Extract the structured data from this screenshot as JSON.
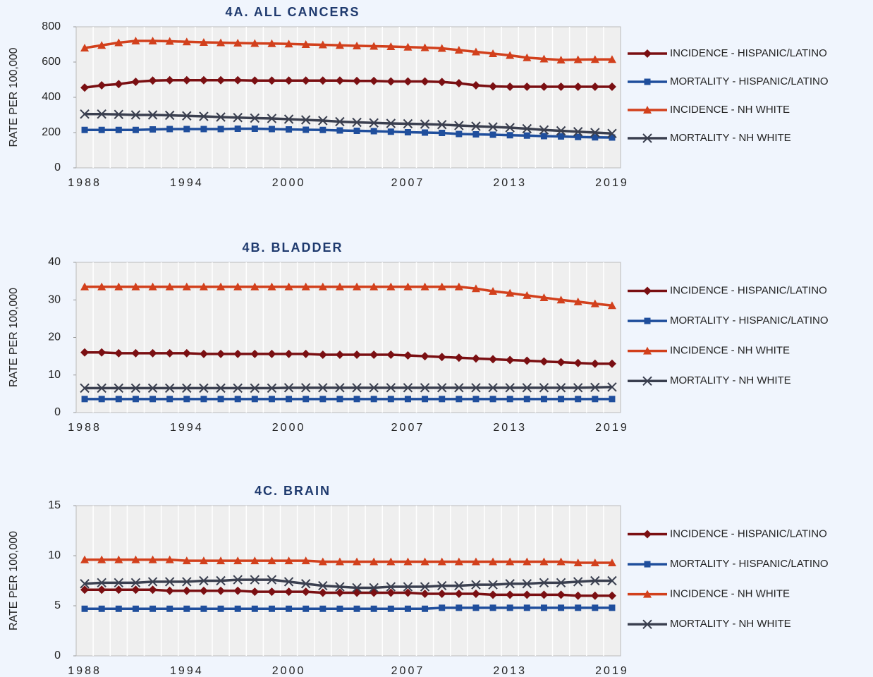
{
  "chart_data": [
    {
      "type": "line",
      "title": "4A. ALL CANCERS",
      "ylabel": "RATE PER 100,000",
      "categories": [
        "1988",
        null,
        null,
        null,
        null,
        null,
        "1994",
        null,
        null,
        null,
        null,
        null,
        "2000",
        null,
        null,
        null,
        null,
        null,
        null,
        "2007",
        null,
        null,
        null,
        null,
        null,
        "2013",
        null,
        null,
        null,
        null,
        null,
        "2019"
      ],
      "ylim": [
        0,
        800
      ],
      "yticks": [
        0,
        200,
        400,
        600,
        800
      ],
      "xgrid": true,
      "legend": "right",
      "series": [
        {
          "name": "INCIDENCE - HISPANIC/LATINO",
          "color": "#7a0f12",
          "marker": "diamond",
          "values": [
            455,
            468,
            475,
            488,
            495,
            497,
            497,
            497,
            497,
            497,
            495,
            495,
            495,
            495,
            495,
            495,
            493,
            493,
            490,
            490,
            490,
            487,
            480,
            468,
            462,
            460,
            460,
            460,
            460,
            460,
            460,
            460
          ]
        },
        {
          "name": "MORTALITY - HISPANIC/LATINO",
          "color": "#1f4e9c",
          "marker": "square",
          "values": [
            215,
            215,
            215,
            215,
            218,
            220,
            220,
            220,
            220,
            222,
            222,
            220,
            218,
            216,
            215,
            212,
            210,
            208,
            205,
            202,
            200,
            198,
            192,
            190,
            188,
            185,
            183,
            180,
            178,
            175,
            173,
            172
          ]
        },
        {
          "name": "INCIDENCE - NH WHITE",
          "color": "#d2401c",
          "marker": "triangle",
          "values": [
            680,
            695,
            710,
            720,
            720,
            718,
            715,
            712,
            710,
            708,
            706,
            705,
            703,
            700,
            698,
            695,
            692,
            690,
            688,
            685,
            682,
            678,
            668,
            658,
            648,
            638,
            625,
            618,
            612,
            614,
            615,
            615
          ]
        },
        {
          "name": "MORTALITY - NH WHITE",
          "color": "#3a3f4f",
          "marker": "x",
          "values": [
            305,
            305,
            303,
            300,
            300,
            298,
            295,
            292,
            288,
            285,
            282,
            280,
            276,
            272,
            268,
            262,
            258,
            255,
            252,
            250,
            248,
            245,
            240,
            236,
            232,
            228,
            222,
            215,
            210,
            205,
            200,
            195
          ]
        }
      ]
    },
    {
      "type": "line",
      "title": "4B. BLADDER",
      "ylabel": "RATE PER 100,000",
      "categories": [
        "1988",
        null,
        null,
        null,
        null,
        null,
        "1994",
        null,
        null,
        null,
        null,
        null,
        "2000",
        null,
        null,
        null,
        null,
        null,
        null,
        "2007",
        null,
        null,
        null,
        null,
        null,
        "2013",
        null,
        null,
        null,
        null,
        null,
        "2019"
      ],
      "ylim": [
        0,
        40
      ],
      "yticks": [
        0,
        10,
        20,
        30,
        40
      ],
      "xgrid": true,
      "legend": "right",
      "series": [
        {
          "name": "INCIDENCE - HISPANIC/LATINO",
          "color": "#7a0f12",
          "marker": "diamond",
          "values": [
            16,
            16,
            15.8,
            15.8,
            15.8,
            15.8,
            15.8,
            15.6,
            15.6,
            15.6,
            15.6,
            15.6,
            15.6,
            15.6,
            15.4,
            15.4,
            15.4,
            15.4,
            15.4,
            15.2,
            15,
            14.8,
            14.6,
            14.4,
            14.2,
            14,
            13.8,
            13.6,
            13.4,
            13.2,
            13,
            13
          ]
        },
        {
          "name": "MORTALITY - HISPANIC/LATINO",
          "color": "#1f4e9c",
          "marker": "square",
          "values": [
            3.6,
            3.6,
            3.6,
            3.6,
            3.6,
            3.6,
            3.6,
            3.6,
            3.6,
            3.6,
            3.6,
            3.6,
            3.6,
            3.6,
            3.6,
            3.6,
            3.6,
            3.6,
            3.6,
            3.6,
            3.6,
            3.6,
            3.6,
            3.6,
            3.6,
            3.6,
            3.6,
            3.6,
            3.6,
            3.6,
            3.6,
            3.6
          ]
        },
        {
          "name": "INCIDENCE - NH WHITE",
          "color": "#d2401c",
          "marker": "triangle",
          "values": [
            33.5,
            33.5,
            33.5,
            33.5,
            33.5,
            33.5,
            33.5,
            33.5,
            33.5,
            33.5,
            33.5,
            33.5,
            33.5,
            33.5,
            33.5,
            33.5,
            33.5,
            33.5,
            33.5,
            33.5,
            33.5,
            33.5,
            33.5,
            33,
            32.3,
            31.8,
            31.2,
            30.6,
            30,
            29.5,
            29,
            28.5
          ]
        },
        {
          "name": "MORTALITY - NH WHITE",
          "color": "#3a3f4f",
          "marker": "x",
          "values": [
            6.5,
            6.5,
            6.5,
            6.5,
            6.5,
            6.5,
            6.5,
            6.5,
            6.5,
            6.5,
            6.5,
            6.5,
            6.6,
            6.6,
            6.6,
            6.6,
            6.6,
            6.6,
            6.6,
            6.6,
            6.6,
            6.6,
            6.6,
            6.6,
            6.6,
            6.6,
            6.6,
            6.6,
            6.6,
            6.6,
            6.7,
            6.8
          ]
        }
      ]
    },
    {
      "type": "line",
      "title": "4C. BRAIN",
      "ylabel": "RATE PER 100,000",
      "categories": [
        "1988",
        null,
        null,
        null,
        null,
        null,
        "1994",
        null,
        null,
        null,
        null,
        null,
        "2000",
        null,
        null,
        null,
        null,
        null,
        null,
        "2007",
        null,
        null,
        null,
        null,
        null,
        "2013",
        null,
        null,
        null,
        null,
        null,
        "2019"
      ],
      "ylim": [
        0,
        15
      ],
      "yticks": [
        0,
        5,
        10,
        15
      ],
      "xgrid": true,
      "legend": "right",
      "series": [
        {
          "name": "INCIDENCE - HISPANIC/LATINO",
          "color": "#7a0f12",
          "marker": "diamond",
          "values": [
            6.6,
            6.6,
            6.6,
            6.6,
            6.6,
            6.5,
            6.5,
            6.5,
            6.5,
            6.5,
            6.4,
            6.4,
            6.4,
            6.4,
            6.3,
            6.3,
            6.3,
            6.3,
            6.3,
            6.3,
            6.2,
            6.2,
            6.2,
            6.2,
            6.1,
            6.1,
            6.1,
            6.1,
            6.1,
            6.0,
            6.0,
            6.0
          ]
        },
        {
          "name": "MORTALITY - HISPANIC/LATINO",
          "color": "#1f4e9c",
          "marker": "square",
          "values": [
            4.7,
            4.7,
            4.7,
            4.7,
            4.7,
            4.7,
            4.7,
            4.7,
            4.7,
            4.7,
            4.7,
            4.7,
            4.7,
            4.7,
            4.7,
            4.7,
            4.7,
            4.7,
            4.7,
            4.7,
            4.7,
            4.8,
            4.8,
            4.8,
            4.8,
            4.8,
            4.8,
            4.8,
            4.8,
            4.8,
            4.8,
            4.8
          ]
        },
        {
          "name": "INCIDENCE - NH WHITE",
          "color": "#d2401c",
          "marker": "triangle",
          "values": [
            9.6,
            9.6,
            9.6,
            9.6,
            9.6,
            9.6,
            9.5,
            9.5,
            9.5,
            9.5,
            9.5,
            9.5,
            9.5,
            9.5,
            9.4,
            9.4,
            9.4,
            9.4,
            9.4,
            9.4,
            9.4,
            9.4,
            9.4,
            9.4,
            9.4,
            9.4,
            9.4,
            9.4,
            9.4,
            9.3,
            9.3,
            9.3
          ]
        },
        {
          "name": "MORTALITY - NH WHITE",
          "color": "#3a3f4f",
          "marker": "x",
          "values": [
            7.2,
            7.3,
            7.3,
            7.3,
            7.4,
            7.4,
            7.4,
            7.5,
            7.5,
            7.6,
            7.6,
            7.6,
            7.4,
            7.2,
            7.0,
            6.9,
            6.8,
            6.8,
            6.9,
            6.9,
            6.9,
            7.0,
            7.0,
            7.1,
            7.1,
            7.2,
            7.2,
            7.3,
            7.3,
            7.4,
            7.5,
            7.5
          ]
        }
      ]
    }
  ]
}
